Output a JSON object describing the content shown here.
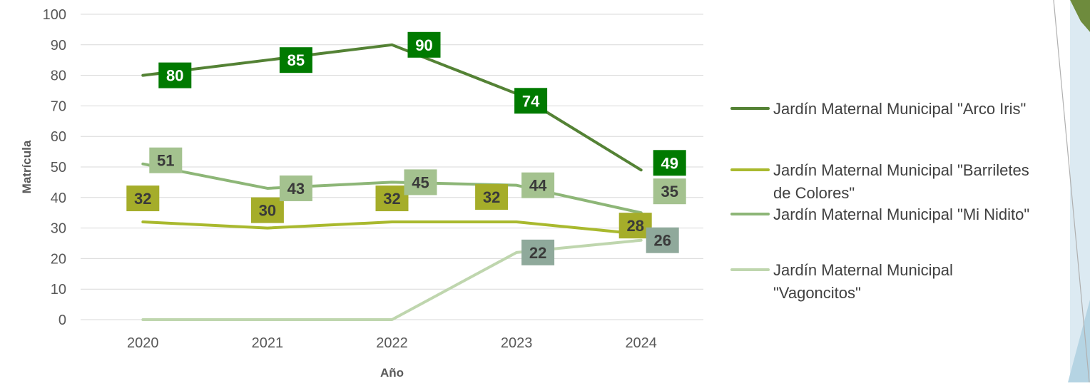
{
  "chart_data": {
    "type": "line",
    "title": "",
    "xlabel": "Año",
    "ylabel": "Matrícula",
    "categories": [
      "2020",
      "2021",
      "2022",
      "2023",
      "2024"
    ],
    "ylim": [
      0,
      100
    ],
    "yticks": [
      "0",
      "10",
      "20",
      "30",
      "40",
      "50",
      "60",
      "70",
      "80",
      "90",
      "100"
    ],
    "grid": true,
    "legend_position": "right",
    "series": [
      {
        "name": "Jardín Maternal Municipal \"Arco Iris\"",
        "name_lines": [
          "Jardín Maternal Municipal \"Arco Iris\""
        ],
        "values": [
          80,
          85,
          90,
          74,
          49
        ],
        "labels": [
          "80",
          "85",
          "90",
          "74",
          "49"
        ],
        "line_color": "#548235",
        "label_bg": "#007A00",
        "label_color": "#ffffff"
      },
      {
        "name": "Jardín Maternal Municipal \"Barriletes de Colores\"",
        "name_lines": [
          "Jardín Maternal Municipal \"Barriletes",
          "de Colores\""
        ],
        "values": [
          32,
          30,
          32,
          32,
          28
        ],
        "labels": [
          "32",
          "30",
          "32",
          "32",
          "28"
        ],
        "line_color": "#A9B92E",
        "label_bg": "#A5AD2A",
        "label_color": "#3A3A3A"
      },
      {
        "name": "Jardín Maternal Municipal \"Mi Nidito\"",
        "name_lines": [
          "Jardín Maternal Municipal \"Mi Nidito\""
        ],
        "values": [
          51,
          43,
          45,
          44,
          35
        ],
        "labels": [
          "51",
          "43",
          "45",
          "44",
          "35"
        ],
        "line_color": "#8DB677",
        "label_bg": "#A4C28F",
        "label_color": "#3A3A3A"
      },
      {
        "name": "Jardín Maternal Municipal \"Vagoncitos\"",
        "name_lines": [
          "Jardín Maternal Municipal",
          "\"Vagoncitos\""
        ],
        "values": [
          0,
          0,
          0,
          22,
          26
        ],
        "labels": [
          "",
          "",
          "",
          "22",
          "26"
        ],
        "line_color": "#BFD6AE",
        "label_bg": "#8FA99B",
        "label_color": "#3A3A3A"
      }
    ]
  }
}
